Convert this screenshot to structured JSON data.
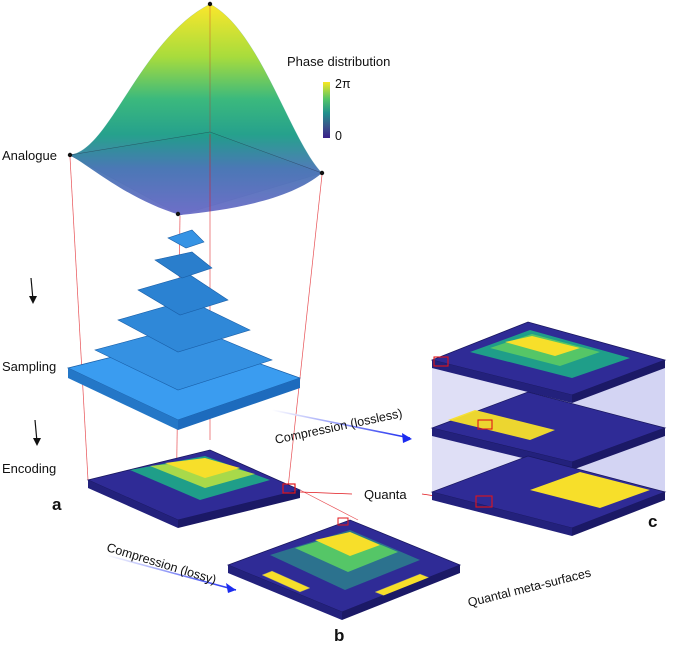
{
  "labels": {
    "analogue": "Analogue",
    "sampling": "Sampling",
    "encoding": "Encoding",
    "quanta": "Quanta",
    "quantal": "Quantal meta-surfaces",
    "compression_lossless": "Compression (lossless)",
    "compression_lossy": "Compression (lossy)"
  },
  "colorbar": {
    "title": "Phase distribution",
    "max_label": "2π",
    "min_label": "0",
    "stops": [
      "#f9e721",
      "#55c667",
      "#1f9e89",
      "#2c728e",
      "#3b528b",
      "#45337d",
      "#440154"
    ]
  },
  "panels": {
    "a": "a",
    "b": "b",
    "c": "c"
  },
  "colors": {
    "block_blue": "#2a8fe0",
    "meta_navy": "#2c2a8f",
    "highlight_red": "#e0151b",
    "arrow_blue": "#2030f0"
  }
}
